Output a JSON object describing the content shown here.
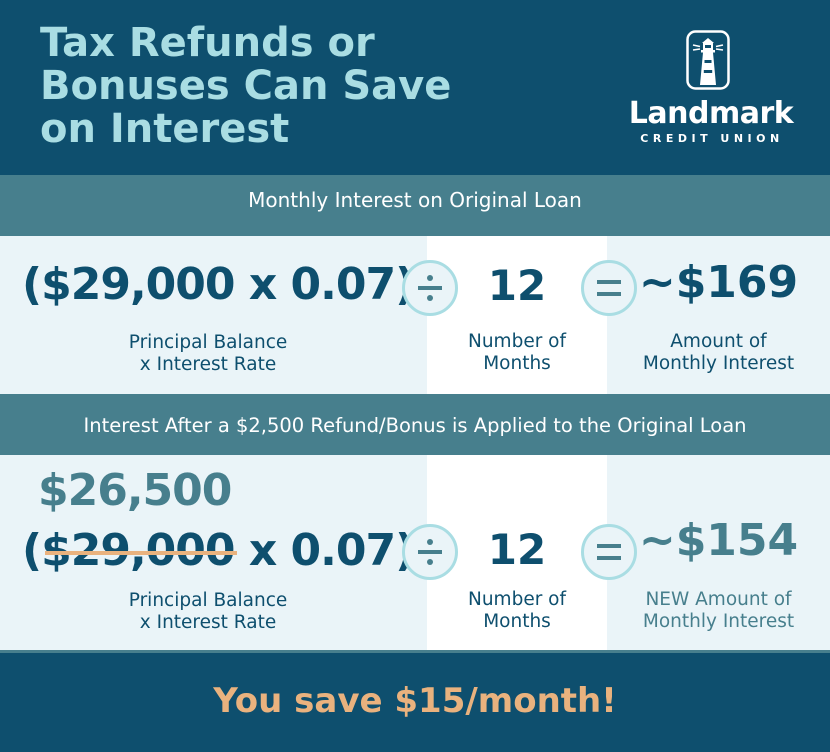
{
  "header": {
    "title_lines": [
      "Tax Refunds or",
      "Bonuses Can Save",
      "on Interest"
    ]
  },
  "logo": {
    "name": "Landmark",
    "subtitle": "CREDIT UNION",
    "icon": "lighthouse-icon"
  },
  "section1": {
    "heading": "Monthly Interest on Original Loan",
    "formula": "($29,000 x 0.07)",
    "formula_label": [
      "Principal Balance",
      "x Interest Rate"
    ],
    "divide_icon": "divide-icon",
    "months": "12",
    "months_label": [
      "Number of",
      "Months"
    ],
    "equals_icon": "equals-icon",
    "result": "~$169",
    "result_label": [
      "Amount of",
      "Monthly Interest"
    ]
  },
  "section2": {
    "heading": "Interest After a $2,500 Refund/Bonus is Applied to the Original Loan",
    "new_principal": "$26,500",
    "formula_open": "(",
    "formula_struck": "$29,000",
    "formula_rest": " x 0.07)",
    "formula_label": [
      "Principal Balance",
      "x Interest Rate"
    ],
    "divide_icon": "divide-icon",
    "months": "12",
    "months_label": [
      "Number of",
      "Months"
    ],
    "equals_icon": "equals-icon",
    "result": "~$154",
    "result_label": [
      "NEW Amount of",
      "Monthly Interest"
    ]
  },
  "footer": {
    "text": "You save $15/month!"
  },
  "colors": {
    "navy": "#0e4f6e",
    "teal_band": "#477f8d",
    "light_blue": "#a9dde3",
    "panel": "#eaf4f8",
    "accent_orange": "#e9b27e"
  }
}
